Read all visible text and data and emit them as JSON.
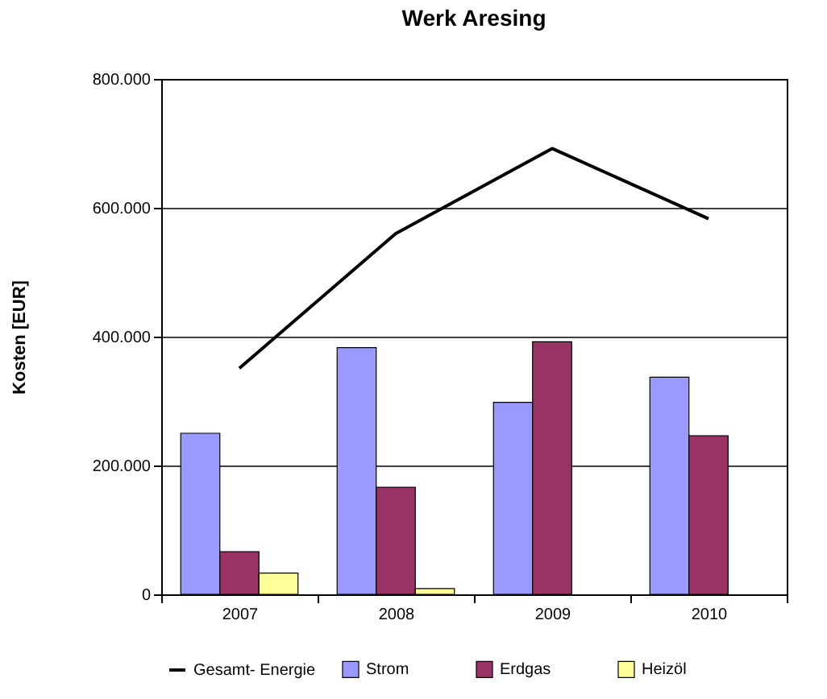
{
  "chart_data": {
    "type": "bar",
    "title": "Werk Aresing",
    "ylabel": "Kosten  [EUR]",
    "categories": [
      "2007",
      "2008",
      "2009",
      "2010"
    ],
    "series": [
      {
        "name": "Strom",
        "color": "#9999ff",
        "values": [
          250000,
          383000,
          298000,
          337000
        ]
      },
      {
        "name": "Erdgas",
        "color": "#993366",
        "values": [
          66000,
          166000,
          392000,
          246000
        ]
      },
      {
        "name": "Heizöl",
        "color": "#ffff99",
        "values": [
          33000,
          9000,
          null,
          null
        ]
      },
      {
        "name": "Gesamt- Energie",
        "type": "line",
        "color": "#000000",
        "values": [
          351000,
          560000,
          692000,
          583000
        ]
      }
    ],
    "ylim": [
      0,
      800000
    ],
    "yticks": [
      {
        "value": 0,
        "label": "0"
      },
      {
        "value": 200000,
        "label": "200.000"
      },
      {
        "value": 400000,
        "label": "400.000"
      },
      {
        "value": 600000,
        "label": "600.000"
      },
      {
        "value": 800000,
        "label": "800.000"
      }
    ],
    "grid": "y",
    "legend": "bottom"
  }
}
